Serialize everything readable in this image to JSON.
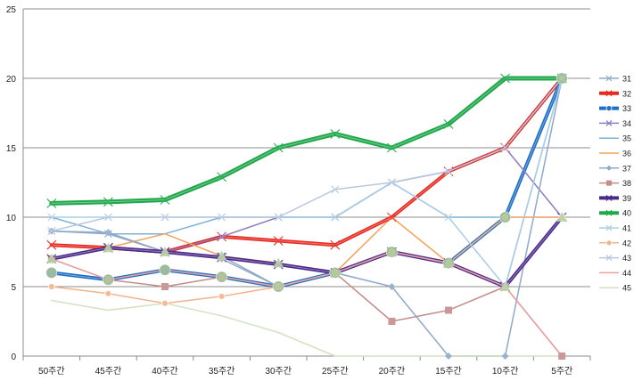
{
  "chart_data": {
    "type": "line",
    "categories": [
      "50주간",
      "45주간",
      "40주간",
      "35주간",
      "30주간",
      "25주간",
      "20주간",
      "15주간",
      "10주간",
      "5주간"
    ],
    "ylim": [
      0,
      25
    ],
    "yticks": [
      0,
      5,
      10,
      15,
      20,
      25
    ],
    "grid": "horizontal",
    "legend_position": "right",
    "series": [
      {
        "name": "31",
        "color": "#8ea9c9",
        "width": 1.5,
        "marker": "x",
        "values": [
          9.0,
          8.8,
          7.5,
          7.2,
          5.0,
          6.0,
          7.5,
          6.7,
          5.0,
          20.0
        ]
      },
      {
        "name": "32",
        "color": "#e8281e",
        "width": 4,
        "marker": "x",
        "values": [
          8.0,
          7.8,
          7.5,
          8.6,
          8.3,
          8.0,
          10.0,
          13.3,
          15.0,
          20.0
        ]
      },
      {
        "name": "33",
        "color": "#1f6fc5",
        "width": 4,
        "marker": "circle",
        "values": [
          6.0,
          5.5,
          6.2,
          5.7,
          5.0,
          6.0,
          7.5,
          6.7,
          10.0,
          20.0
        ]
      },
      {
        "name": "34",
        "color": "#8e7cc3",
        "width": 1.5,
        "marker": "x",
        "values": [
          7.0,
          7.8,
          7.5,
          8.6,
          10.0,
          10.0,
          12.5,
          13.3,
          15.0,
          10.0
        ]
      },
      {
        "name": "35",
        "color": "#7fb2d6",
        "width": 1.5,
        "marker": "none",
        "values": [
          10.0,
          8.8,
          8.8,
          10.0,
          10.0,
          10.0,
          12.5,
          10.0,
          10.0,
          10.0
        ]
      },
      {
        "name": "36",
        "color": "#f5a15a",
        "width": 1.5,
        "marker": "none",
        "values": [
          7.0,
          7.8,
          8.8,
          7.2,
          6.7,
          6.0,
          10.0,
          6.7,
          10.0,
          10.0
        ]
      },
      {
        "name": "37",
        "color": "#8ea9c9",
        "width": 1.5,
        "marker": "diamond",
        "values": [
          9.0,
          8.9,
          7.5,
          7.0,
          5.0,
          6.0,
          5.0,
          0.0,
          0.0,
          20.0
        ]
      },
      {
        "name": "38",
        "color": "#c58c8c",
        "width": 1.5,
        "marker": "square",
        "values": [
          7.0,
          5.5,
          5.0,
          5.7,
          5.0,
          6.0,
          2.5,
          3.3,
          5.0,
          0.0
        ]
      },
      {
        "name": "39",
        "color": "#4a2a8a",
        "width": 4,
        "marker": "x",
        "values": [
          7.0,
          7.8,
          7.5,
          7.1,
          6.6,
          6.0,
          7.5,
          6.7,
          5.0,
          10.0
        ]
      },
      {
        "name": "40",
        "color": "#1ea84a",
        "width": 5,
        "marker": "x",
        "values": [
          11.0,
          11.1,
          11.25,
          12.9,
          15.0,
          16.0,
          15.0,
          16.7,
          20.0,
          20.0
        ]
      },
      {
        "name": "41",
        "color": "#a9cde8",
        "width": 1.5,
        "marker": "x",
        "values": [
          10.0,
          10.0,
          10.0,
          10.0,
          10.0,
          10.0,
          12.5,
          10.0,
          5.0,
          20.0
        ]
      },
      {
        "name": "42",
        "color": "#f5b28a",
        "width": 1.5,
        "marker": "circle",
        "values": [
          5.0,
          4.5,
          3.8,
          4.3,
          5.0,
          6.0,
          7.5,
          6.7,
          10.0,
          10.0
        ]
      },
      {
        "name": "43",
        "color": "#b8c7e0",
        "width": 1.5,
        "marker": "x",
        "values": [
          9.0,
          10.0,
          10.0,
          10.0,
          10.0,
          12.0,
          12.5,
          13.3,
          15.0,
          20.0
        ]
      },
      {
        "name": "44",
        "color": "#e8a0a0",
        "width": 1.5,
        "marker": "none",
        "values": [
          7.0,
          5.5,
          6.2,
          5.7,
          5.0,
          6.0,
          7.5,
          6.7,
          5.0,
          0.0
        ]
      },
      {
        "name": "45",
        "color": "#d3e2c0",
        "width": 1.5,
        "marker": "none",
        "values": [
          4.0,
          3.3,
          3.8,
          2.9,
          1.7,
          0.0,
          0.0,
          0.0,
          0.0,
          0.0
        ]
      }
    ]
  }
}
